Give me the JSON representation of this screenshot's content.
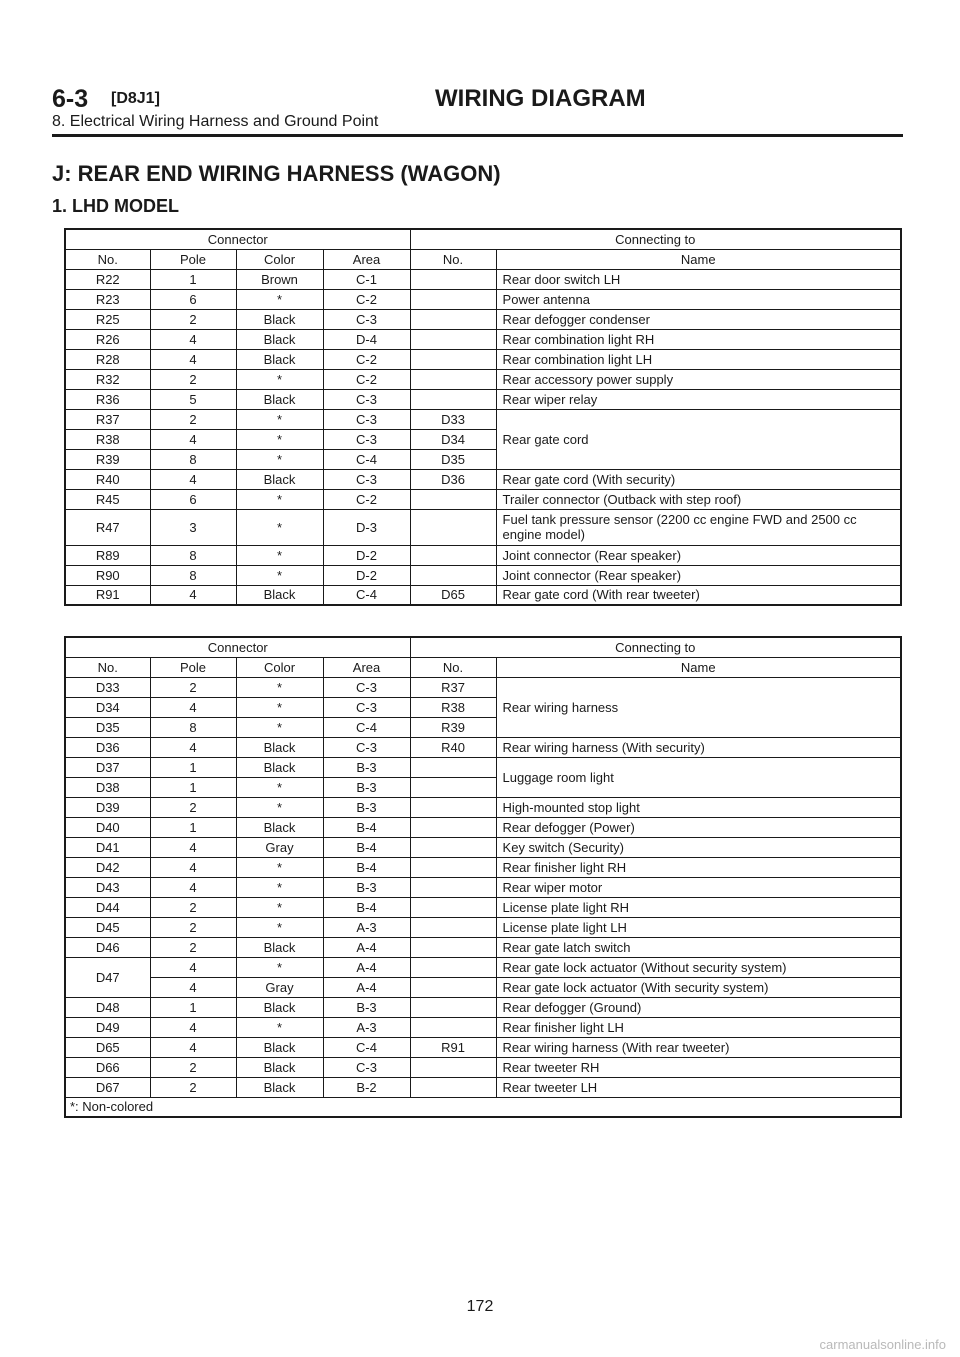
{
  "header": {
    "section_num": "6-3",
    "section_code": "[D8J1]",
    "section_title": "WIRING DIAGRAM",
    "subtitle": "8. Electrical Wiring Harness and Ground Point"
  },
  "title": "J: REAR END WIRING HARNESS (WAGON)",
  "subtitle": "1. LHD MODEL",
  "tables": [
    {
      "head_group": [
        "Connector",
        "Connecting to"
      ],
      "columns": [
        "No.",
        "Pole",
        "Color",
        "Area",
        "No.",
        "Name"
      ],
      "rows": [
        [
          "R22",
          "1",
          "Brown",
          "C-1",
          "",
          "Rear door switch LH"
        ],
        [
          "R23",
          "6",
          "*",
          "C-2",
          "",
          "Power antenna"
        ],
        [
          "R25",
          "2",
          "Black",
          "C-3",
          "",
          "Rear defogger condenser"
        ],
        [
          "R26",
          "4",
          "Black",
          "D-4",
          "",
          "Rear combination light RH"
        ],
        [
          "R28",
          "4",
          "Black",
          "C-2",
          "",
          "Rear combination light LH"
        ],
        [
          "R32",
          "2",
          "*",
          "C-2",
          "",
          "Rear accessory power supply"
        ],
        [
          "R36",
          "5",
          "Black",
          "C-3",
          "",
          "Rear wiper relay"
        ],
        [
          "R37",
          "2",
          "*",
          "C-3",
          "D33",
          "Rear gate cord"
        ],
        [
          "R38",
          "4",
          "*",
          "C-3",
          "D34",
          ""
        ],
        [
          "R39",
          "8",
          "*",
          "C-4",
          "D35",
          ""
        ],
        [
          "R40",
          "4",
          "Black",
          "C-3",
          "D36",
          "Rear gate cord (With security)"
        ],
        [
          "R45",
          "6",
          "*",
          "C-2",
          "",
          "Trailer connector (Outback with step roof)"
        ],
        [
          "R47",
          "3",
          "*",
          "D-3",
          "",
          "Fuel tank pressure sensor (2200 cc engine FWD and 2500 cc engine model)"
        ],
        [
          "R89",
          "8",
          "*",
          "D-2",
          "",
          "Joint connector (Rear speaker)"
        ],
        [
          "R90",
          "8",
          "*",
          "D-2",
          "",
          "Joint connector (Rear speaker)"
        ],
        [
          "R91",
          "4",
          "Black",
          "C-4",
          "D65",
          "Rear gate cord (With rear tweeter)"
        ]
      ]
    },
    {
      "head_group": [
        "Connector",
        "Connecting to"
      ],
      "columns": [
        "No.",
        "Pole",
        "Color",
        "Area",
        "No.",
        "Name"
      ],
      "rows": [
        [
          "D33",
          "2",
          "*",
          "C-3",
          "R37",
          "Rear wiring harness"
        ],
        [
          "D34",
          "4",
          "*",
          "C-3",
          "R38",
          ""
        ],
        [
          "D35",
          "8",
          "*",
          "C-4",
          "R39",
          ""
        ],
        [
          "D36",
          "4",
          "Black",
          "C-3",
          "R40",
          "Rear wiring harness (With security)"
        ],
        [
          "D37",
          "1",
          "Black",
          "B-3",
          "",
          "Luggage room light"
        ],
        [
          "D38",
          "1",
          "*",
          "B-3",
          "",
          ""
        ],
        [
          "D39",
          "2",
          "*",
          "B-3",
          "",
          "High-mounted stop light"
        ],
        [
          "D40",
          "1",
          "Black",
          "B-4",
          "",
          "Rear defogger (Power)"
        ],
        [
          "D41",
          "4",
          "Gray",
          "B-4",
          "",
          "Key switch (Security)"
        ],
        [
          "D42",
          "4",
          "*",
          "B-4",
          "",
          "Rear finisher light RH"
        ],
        [
          "D43",
          "4",
          "*",
          "B-3",
          "",
          "Rear wiper motor"
        ],
        [
          "D44",
          "2",
          "*",
          "B-4",
          "",
          "License plate light RH"
        ],
        [
          "D45",
          "2",
          "*",
          "A-3",
          "",
          "License plate light LH"
        ],
        [
          "D46",
          "2",
          "Black",
          "A-4",
          "",
          "Rear gate latch switch"
        ],
        [
          "D47",
          "4",
          "*",
          "A-4",
          "",
          "Rear gate lock actuator (Without security system)"
        ],
        [
          "",
          "4",
          "Gray",
          "A-4",
          "",
          "Rear gate lock actuator (With security system)"
        ],
        [
          "D48",
          "1",
          "Black",
          "B-3",
          "",
          "Rear defogger (Ground)"
        ],
        [
          "D49",
          "4",
          "*",
          "A-3",
          "",
          "Rear finisher light LH"
        ],
        [
          "D65",
          "4",
          "Black",
          "C-4",
          "R91",
          "Rear wiring harness (With rear tweeter)"
        ],
        [
          "D66",
          "2",
          "Black",
          "C-3",
          "",
          "Rear tweeter RH"
        ],
        [
          "D67",
          "2",
          "Black",
          "B-2",
          "",
          "Rear tweeter LH"
        ]
      ],
      "footnote": "*: Non-colored"
    }
  ],
  "page_number": "172",
  "watermark": "carmanualsonline.info"
}
